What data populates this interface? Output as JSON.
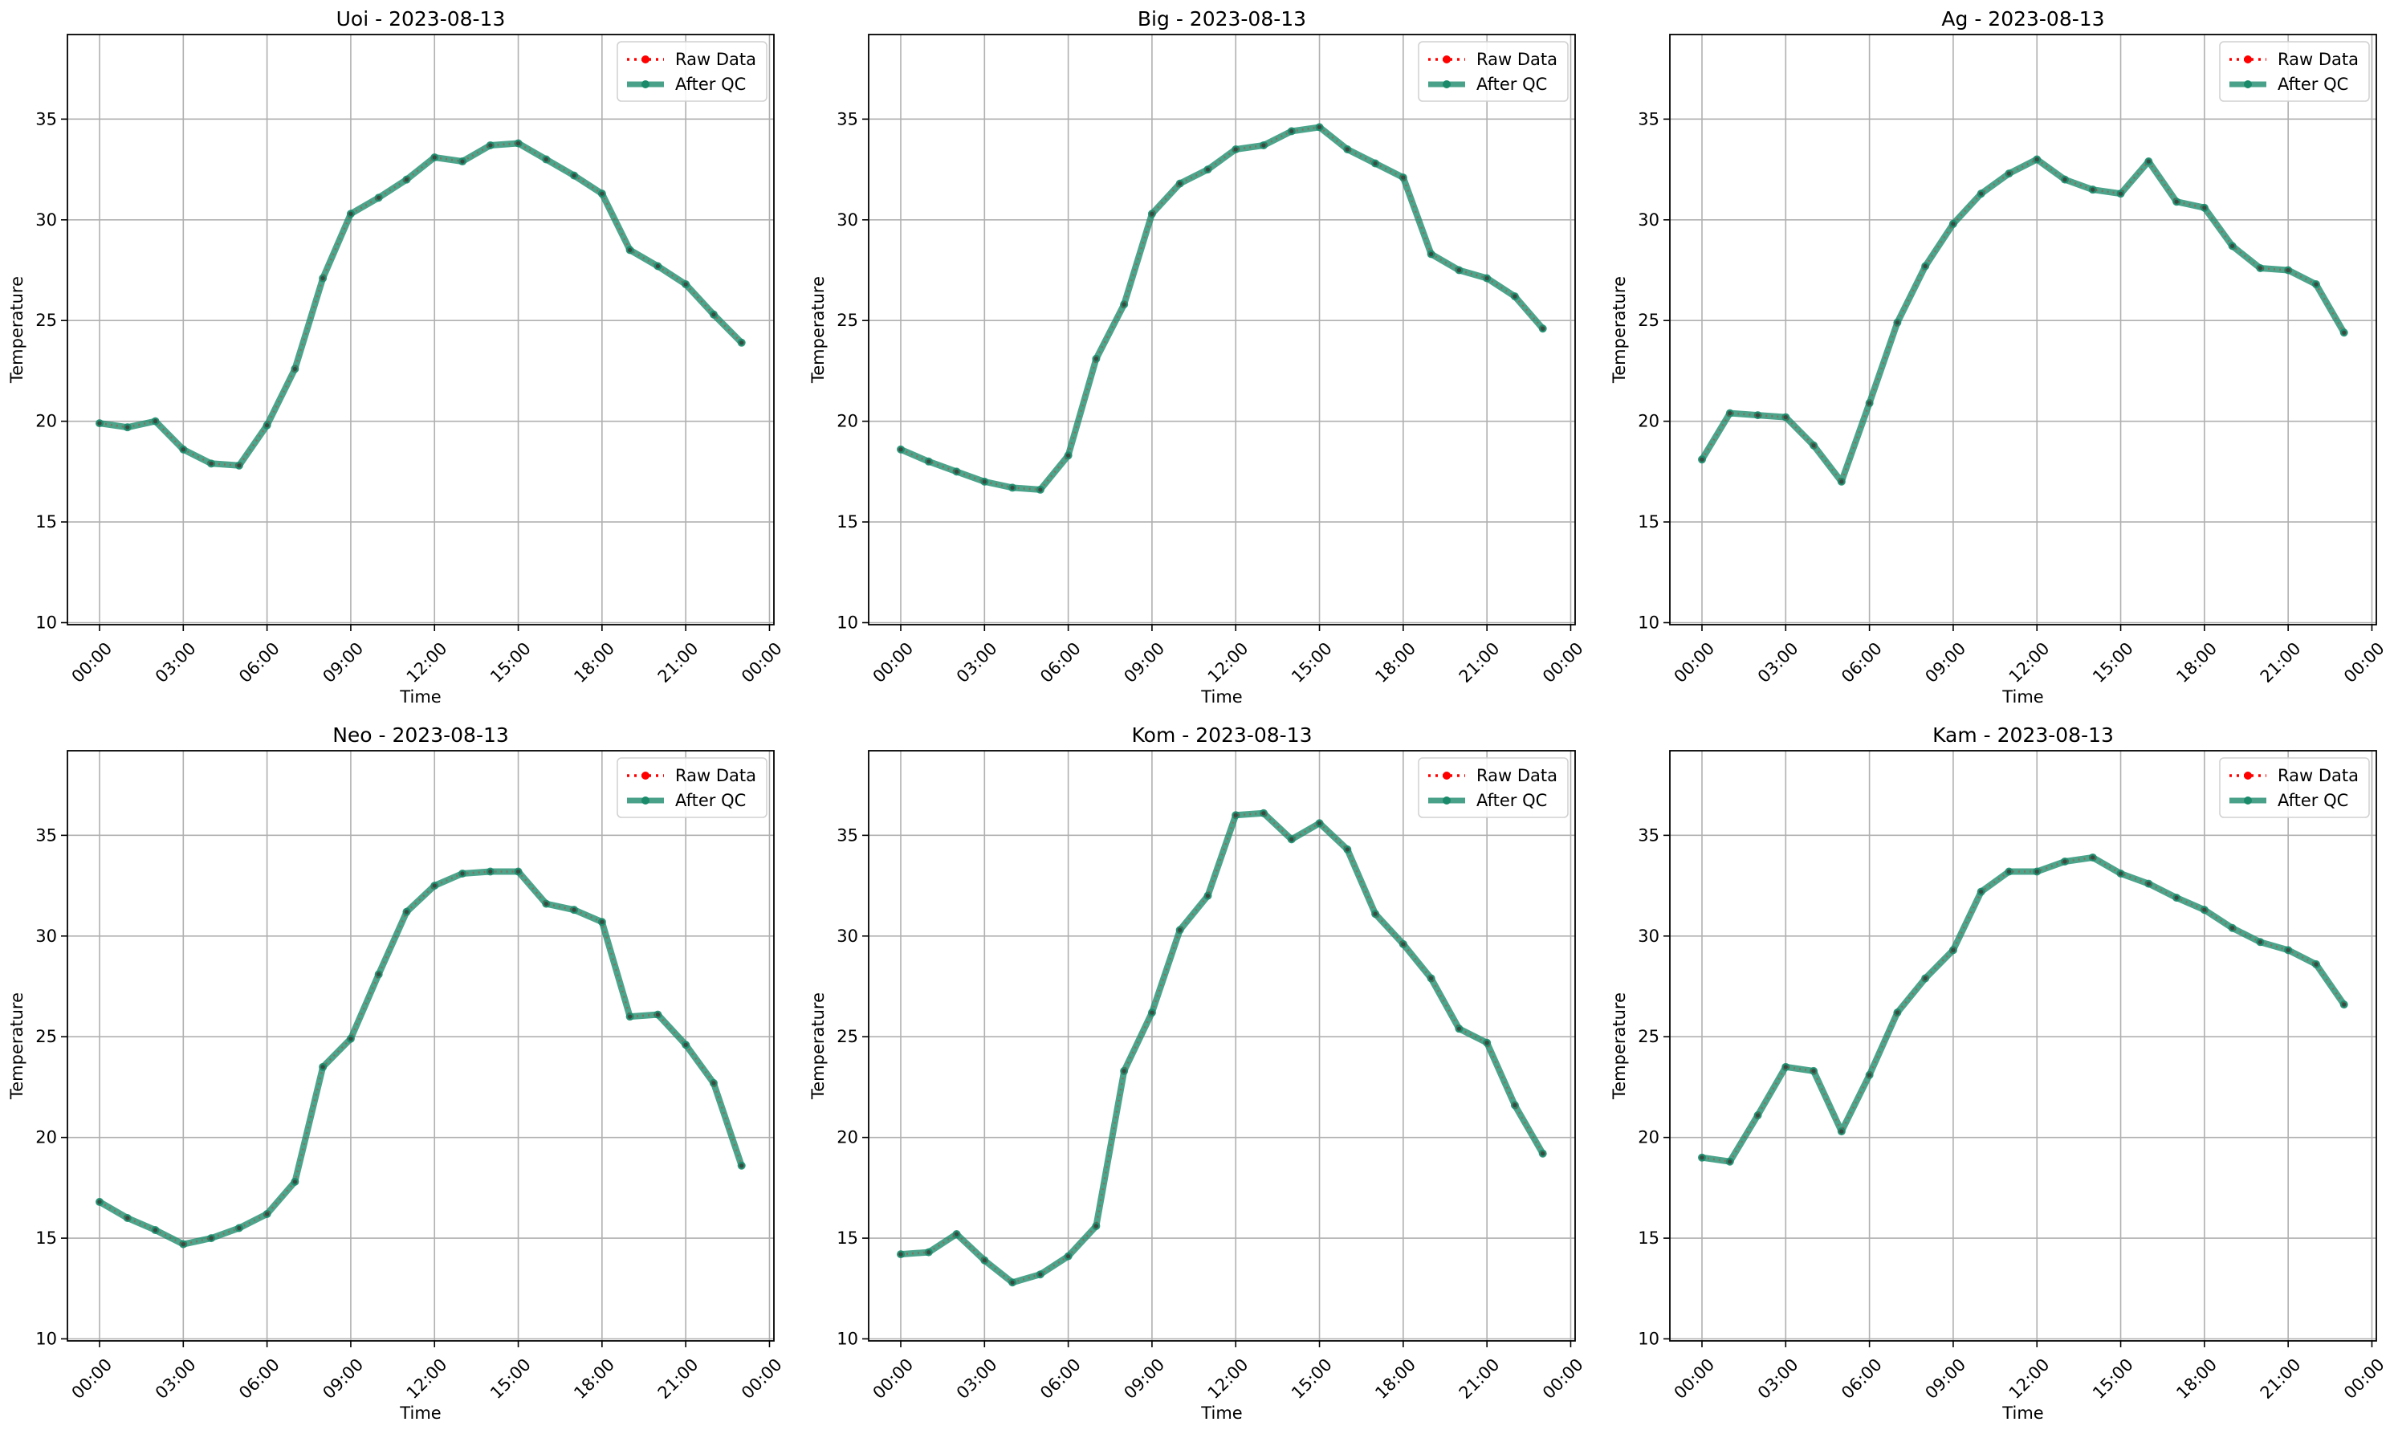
{
  "figure": {
    "legend_entries": [
      "Raw Data",
      "After QC"
    ]
  },
  "colors": {
    "raw": "#ff0000",
    "qc": "#1a8a6a",
    "grid": "#b0b0b0",
    "axes": "#000000"
  },
  "chart_data": [
    {
      "type": "line",
      "title": "Uoi - 2023-08-13",
      "xlabel": "Time",
      "ylabel": "Temperature",
      "xtick_labels": [
        "00:00",
        "03:00",
        "06:00",
        "09:00",
        "12:00",
        "15:00",
        "18:00",
        "21:00",
        "00:00"
      ],
      "yticks": [
        10,
        15,
        20,
        25,
        30,
        35
      ],
      "ylim": [
        9.9,
        39.2
      ],
      "legend": "top-right",
      "grid": true,
      "x": [
        0,
        1,
        2,
        3,
        4,
        5,
        6,
        7,
        8,
        9,
        10,
        11,
        12,
        13,
        14,
        15,
        16,
        17,
        18,
        19,
        20,
        21,
        22,
        23
      ],
      "series": [
        {
          "name": "Raw Data",
          "values": [
            19.9,
            19.7,
            20.0,
            18.6,
            17.9,
            17.8,
            19.8,
            22.6,
            27.1,
            30.3,
            31.1,
            32.0,
            33.1,
            32.9,
            33.7,
            33.8,
            33.0,
            32.2,
            31.3,
            28.5,
            27.7,
            26.8,
            25.3,
            23.9
          ]
        },
        {
          "name": "After QC",
          "values": [
            19.9,
            19.7,
            20.0,
            18.6,
            17.9,
            17.8,
            19.8,
            22.6,
            27.1,
            30.3,
            31.1,
            32.0,
            33.1,
            32.9,
            33.7,
            33.8,
            33.0,
            32.2,
            31.3,
            28.5,
            27.7,
            26.8,
            25.3,
            23.9
          ]
        }
      ]
    },
    {
      "type": "line",
      "title": "Big - 2023-08-13",
      "xlabel": "Time",
      "ylabel": "Temperature",
      "xtick_labels": [
        "00:00",
        "03:00",
        "06:00",
        "09:00",
        "12:00",
        "15:00",
        "18:00",
        "21:00",
        "00:00"
      ],
      "yticks": [
        10,
        15,
        20,
        25,
        30,
        35
      ],
      "ylim": [
        9.9,
        39.2
      ],
      "legend": "top-right",
      "grid": true,
      "x": [
        0,
        1,
        2,
        3,
        4,
        5,
        6,
        7,
        8,
        9,
        10,
        11,
        12,
        13,
        14,
        15,
        16,
        17,
        18,
        19,
        20,
        21,
        22,
        23
      ],
      "series": [
        {
          "name": "Raw Data",
          "values": [
            18.6,
            18.0,
            17.5,
            17.0,
            16.7,
            16.6,
            18.3,
            23.1,
            25.8,
            30.3,
            31.8,
            32.5,
            33.5,
            33.7,
            34.4,
            34.6,
            33.5,
            32.8,
            32.1,
            28.3,
            27.5,
            27.1,
            26.2,
            24.6
          ]
        },
        {
          "name": "After QC",
          "values": [
            18.6,
            18.0,
            17.5,
            17.0,
            16.7,
            16.6,
            18.3,
            23.1,
            25.8,
            30.3,
            31.8,
            32.5,
            33.5,
            33.7,
            34.4,
            34.6,
            33.5,
            32.8,
            32.1,
            28.3,
            27.5,
            27.1,
            26.2,
            24.6
          ]
        }
      ]
    },
    {
      "type": "line",
      "title": "Ag - 2023-08-13",
      "xlabel": "Time",
      "ylabel": "Temperature",
      "xtick_labels": [
        "00:00",
        "03:00",
        "06:00",
        "09:00",
        "12:00",
        "15:00",
        "18:00",
        "21:00",
        "00:00"
      ],
      "yticks": [
        10,
        15,
        20,
        25,
        30,
        35
      ],
      "ylim": [
        9.9,
        39.2
      ],
      "legend": "top-right",
      "grid": true,
      "x": [
        0,
        1,
        2,
        3,
        4,
        5,
        6,
        7,
        8,
        9,
        10,
        11,
        12,
        13,
        14,
        15,
        16,
        17,
        18,
        19,
        20,
        21,
        22,
        23
      ],
      "series": [
        {
          "name": "Raw Data",
          "values": [
            18.1,
            20.4,
            20.3,
            20.2,
            18.8,
            17.0,
            20.9,
            24.9,
            27.7,
            29.8,
            31.3,
            32.3,
            33.0,
            32.0,
            31.5,
            31.3,
            32.9,
            30.9,
            30.6,
            28.7,
            27.6,
            27.5,
            26.8,
            24.4
          ]
        },
        {
          "name": "After QC",
          "values": [
            18.1,
            20.4,
            20.3,
            20.2,
            18.8,
            17.0,
            20.9,
            24.9,
            27.7,
            29.8,
            31.3,
            32.3,
            33.0,
            32.0,
            31.5,
            31.3,
            32.9,
            30.9,
            30.6,
            28.7,
            27.6,
            27.5,
            26.8,
            24.4
          ]
        }
      ]
    },
    {
      "type": "line",
      "title": "Neo - 2023-08-13",
      "xlabel": "Time",
      "ylabel": "Temperature",
      "xtick_labels": [
        "00:00",
        "03:00",
        "06:00",
        "09:00",
        "12:00",
        "15:00",
        "18:00",
        "21:00",
        "00:00"
      ],
      "yticks": [
        10,
        15,
        20,
        25,
        30,
        35
      ],
      "ylim": [
        9.9,
        39.2
      ],
      "legend": "top-right",
      "grid": true,
      "x": [
        0,
        1,
        2,
        3,
        4,
        5,
        6,
        7,
        8,
        9,
        10,
        11,
        12,
        13,
        14,
        15,
        16,
        17,
        18,
        19,
        20,
        21,
        22,
        23
      ],
      "series": [
        {
          "name": "Raw Data",
          "values": [
            16.8,
            16.0,
            15.4,
            14.7,
            15.0,
            15.5,
            16.2,
            17.8,
            23.5,
            24.9,
            28.1,
            31.2,
            32.5,
            33.1,
            33.2,
            33.2,
            31.6,
            31.3,
            30.7,
            26.0,
            26.1,
            24.6,
            22.7,
            18.6
          ]
        },
        {
          "name": "After QC",
          "values": [
            16.8,
            16.0,
            15.4,
            14.7,
            15.0,
            15.5,
            16.2,
            17.8,
            23.5,
            24.9,
            28.1,
            31.2,
            32.5,
            33.1,
            33.2,
            33.2,
            31.6,
            31.3,
            30.7,
            26.0,
            26.1,
            24.6,
            22.7,
            18.6
          ]
        }
      ]
    },
    {
      "type": "line",
      "title": "Kom - 2023-08-13",
      "xlabel": "Time",
      "ylabel": "Temperature",
      "xtick_labels": [
        "00:00",
        "03:00",
        "06:00",
        "09:00",
        "12:00",
        "15:00",
        "18:00",
        "21:00",
        "00:00"
      ],
      "yticks": [
        10,
        15,
        20,
        25,
        30,
        35
      ],
      "ylim": [
        9.9,
        39.2
      ],
      "legend": "top-right",
      "grid": true,
      "x": [
        0,
        1,
        2,
        3,
        4,
        5,
        6,
        7,
        8,
        9,
        10,
        11,
        12,
        13,
        14,
        15,
        16,
        17,
        18,
        19,
        20,
        21,
        22,
        23
      ],
      "series": [
        {
          "name": "Raw Data",
          "values": [
            14.2,
            14.3,
            15.2,
            13.9,
            12.8,
            13.2,
            14.1,
            15.6,
            23.3,
            26.2,
            30.3,
            32.0,
            36.0,
            36.1,
            34.8,
            35.6,
            34.3,
            31.1,
            29.6,
            27.9,
            25.4,
            24.7,
            21.6,
            19.2
          ]
        },
        {
          "name": "After QC",
          "values": [
            14.2,
            14.3,
            15.2,
            13.9,
            12.8,
            13.2,
            14.1,
            15.6,
            23.3,
            26.2,
            30.3,
            32.0,
            36.0,
            36.1,
            34.8,
            35.6,
            34.3,
            31.1,
            29.6,
            27.9,
            25.4,
            24.7,
            21.6,
            19.2
          ]
        }
      ]
    },
    {
      "type": "line",
      "title": "Kam - 2023-08-13",
      "xlabel": "Time",
      "ylabel": "Temperature",
      "xtick_labels": [
        "00:00",
        "03:00",
        "06:00",
        "09:00",
        "12:00",
        "15:00",
        "18:00",
        "21:00",
        "00:00"
      ],
      "yticks": [
        10,
        15,
        20,
        25,
        30,
        35
      ],
      "ylim": [
        9.9,
        39.2
      ],
      "legend": "top-right",
      "grid": true,
      "x": [
        0,
        1,
        2,
        3,
        4,
        5,
        6,
        7,
        8,
        9,
        10,
        11,
        12,
        13,
        14,
        15,
        16,
        17,
        18,
        19,
        20,
        21,
        22,
        23
      ],
      "series": [
        {
          "name": "Raw Data",
          "values": [
            19.0,
            18.8,
            21.1,
            23.5,
            23.3,
            20.3,
            23.1,
            26.2,
            27.9,
            29.3,
            32.2,
            33.2,
            33.2,
            33.7,
            33.9,
            33.1,
            32.6,
            31.9,
            31.3,
            30.4,
            29.7,
            29.3,
            28.6,
            26.6
          ]
        },
        {
          "name": "After QC",
          "values": [
            19.0,
            18.8,
            21.1,
            23.5,
            23.3,
            20.3,
            23.1,
            26.2,
            27.9,
            29.3,
            32.2,
            33.2,
            33.2,
            33.7,
            33.9,
            33.1,
            32.6,
            31.9,
            31.3,
            30.4,
            29.7,
            29.3,
            28.6,
            26.6
          ]
        }
      ]
    }
  ]
}
